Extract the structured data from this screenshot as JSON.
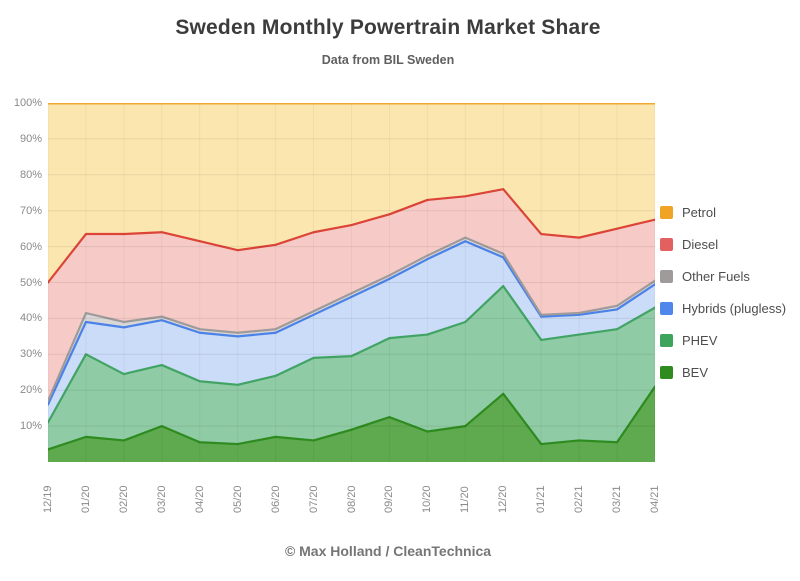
{
  "header": {
    "title": "Sweden Monthly Powertrain Market Share",
    "subtitle": "Data from BIL Sweden"
  },
  "footer": {
    "credit": "© Max Holland / CleanTechnica"
  },
  "y_axis": {
    "ticks": [
      100,
      90,
      80,
      70,
      60,
      50,
      40,
      30,
      20,
      10
    ],
    "suffix": "%"
  },
  "chart_data": {
    "type": "area",
    "stacked": true,
    "units": "percent_share",
    "title": "Sweden Monthly Powertrain Market Share",
    "subtitle": "Data from BIL Sweden",
    "xlabel": "",
    "ylabel": "",
    "ylim": [
      0,
      100
    ],
    "grid": true,
    "legend_position": "right",
    "x": [
      "12/19",
      "01/20",
      "02/20",
      "03/20",
      "04/20",
      "05/20",
      "06/20",
      "07/20",
      "08/20",
      "09/20",
      "10/20",
      "11/20",
      "12/20",
      "01/21",
      "02/21",
      "03/21",
      "04/21"
    ],
    "series": [
      {
        "name": "BEV",
        "line": "#2E8B1F",
        "fill": "#5FA94F",
        "swatch": "#2F8B1D",
        "values": [
          3.5,
          7,
          6,
          10,
          5.5,
          5,
          7,
          6,
          9,
          12.5,
          8.5,
          10,
          19,
          5,
          6,
          5.5,
          21
        ]
      },
      {
        "name": "PHEV",
        "line": "#41A465",
        "fill": "#8FCBA5",
        "swatch": "#3EA45B",
        "values": [
          7.5,
          23,
          18.5,
          17,
          17,
          16.5,
          17,
          23,
          20.5,
          22,
          27,
          29,
          30,
          29,
          29.5,
          31.5,
          22
        ]
      },
      {
        "name": "Hybrids (plugless)",
        "line": "#4B82E8",
        "fill": "#CADCF8",
        "swatch": "#4F86EC",
        "values": [
          5,
          9,
          13,
          12.5,
          13.5,
          13.5,
          12,
          12,
          16.5,
          16.5,
          21,
          22.5,
          8,
          6.5,
          5.5,
          5.5,
          6.5
        ]
      },
      {
        "name": "Other Fuels",
        "line": "#A09B9B",
        "fill": "#DAD7D7",
        "swatch": "#A09B9B",
        "values": [
          1,
          2.5,
          1.5,
          1,
          1,
          1,
          1,
          1,
          1,
          1,
          1,
          1,
          1,
          0.5,
          0.5,
          1,
          1
        ]
      },
      {
        "name": "Diesel",
        "line": "#DB4437",
        "fill": "#F6CBC7",
        "swatch": "#E26060",
        "values": [
          33,
          22,
          24.5,
          23.5,
          24.5,
          23,
          23.5,
          22,
          19,
          17,
          15.5,
          11.5,
          18,
          22.5,
          21,
          21.5,
          17
        ]
      },
      {
        "name": "Petrol",
        "line": "#F0A930",
        "fill": "#FBE6AF",
        "swatch": "#EFA426",
        "values": [
          50,
          36.5,
          36.5,
          36,
          38.5,
          41,
          39.5,
          36,
          34,
          31,
          27,
          26,
          24,
          36.5,
          37.5,
          35,
          32.5
        ]
      }
    ],
    "legend_order_top_to_bottom": [
      "Petrol",
      "Diesel",
      "Other Fuels",
      "Hybrids (plugless)",
      "PHEV",
      "BEV"
    ]
  }
}
